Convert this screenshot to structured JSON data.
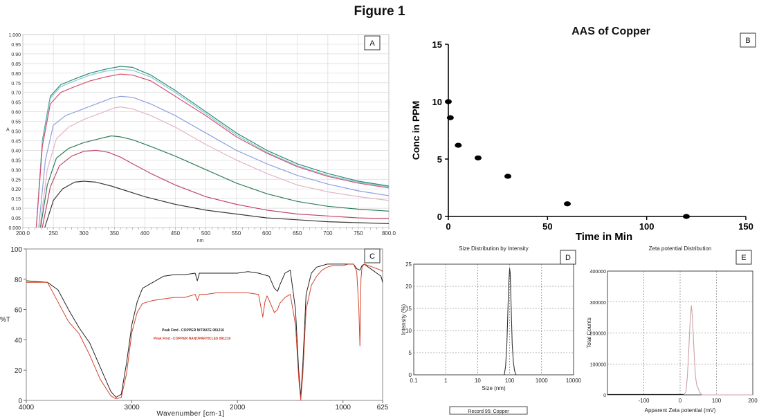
{
  "figure_title": "Figure 1",
  "chart_data": [
    {
      "id": "A",
      "panel_label": "A",
      "type": "line",
      "title": "",
      "xlabel": "nm",
      "ylabel": "A",
      "xlim": [
        200,
        800
      ],
      "ylim": [
        0,
        1.0
      ],
      "x_ticks": [
        "200.0",
        "250",
        "300",
        "350",
        "400",
        "450",
        "500",
        "550",
        "600",
        "650",
        "700",
        "750",
        "800.0"
      ],
      "y_ticks": [
        "0.000",
        "0.05",
        "0.10",
        "0.15",
        "0.20",
        "0.25",
        "0.30",
        "0.35",
        "0.40",
        "0.45",
        "0.50",
        "0.55",
        "0.60",
        "0.65",
        "0.70",
        "0.75",
        "0.80",
        "0.85",
        "0.90",
        "0.95",
        "1.000"
      ],
      "grid": true,
      "series": [
        {
          "color": "#2e8b6e",
          "x": [
            222,
            232,
            245,
            262,
            285,
            310,
            335,
            360,
            380,
            410,
            450,
            500,
            550,
            600,
            650,
            700,
            750,
            800
          ],
          "y": [
            0,
            0.45,
            0.68,
            0.74,
            0.77,
            0.8,
            0.82,
            0.835,
            0.83,
            0.79,
            0.71,
            0.6,
            0.49,
            0.4,
            0.33,
            0.28,
            0.24,
            0.215
          ]
        },
        {
          "color": "#7fc9d9",
          "x": [
            222,
            232,
            245,
            262,
            285,
            310,
            335,
            360,
            380,
            410,
            450,
            500,
            550,
            600,
            650,
            700,
            750,
            800
          ],
          "y": [
            0,
            0.44,
            0.67,
            0.73,
            0.76,
            0.79,
            0.81,
            0.82,
            0.815,
            0.78,
            0.7,
            0.59,
            0.48,
            0.39,
            0.32,
            0.27,
            0.235,
            0.21
          ]
        },
        {
          "color": "#d94f6f",
          "x": [
            222,
            232,
            245,
            262,
            285,
            310,
            335,
            360,
            380,
            410,
            450,
            500,
            550,
            600,
            650,
            700,
            750,
            800
          ],
          "y": [
            0,
            0.42,
            0.64,
            0.7,
            0.73,
            0.76,
            0.78,
            0.795,
            0.79,
            0.76,
            0.68,
            0.58,
            0.47,
            0.385,
            0.315,
            0.265,
            0.23,
            0.205
          ]
        },
        {
          "color": "#8f9fe0",
          "x": [
            226,
            237,
            250,
            270,
            295,
            320,
            345,
            360,
            380,
            410,
            450,
            500,
            550,
            600,
            650,
            700,
            750,
            800
          ],
          "y": [
            0,
            0.35,
            0.53,
            0.58,
            0.61,
            0.64,
            0.67,
            0.68,
            0.675,
            0.64,
            0.58,
            0.49,
            0.4,
            0.33,
            0.27,
            0.225,
            0.19,
            0.165
          ]
        },
        {
          "color": "#e3b3c8",
          "x": [
            228,
            240,
            255,
            275,
            300,
            325,
            350,
            360,
            380,
            410,
            450,
            500,
            550,
            600,
            650,
            700,
            750,
            800
          ],
          "y": [
            0,
            0.3,
            0.46,
            0.52,
            0.56,
            0.59,
            0.62,
            0.625,
            0.615,
            0.58,
            0.52,
            0.43,
            0.35,
            0.28,
            0.22,
            0.185,
            0.16,
            0.14
          ]
        },
        {
          "color": "#2e7d55",
          "x": [
            229,
            240,
            255,
            275,
            300,
            325,
            345,
            360,
            380,
            410,
            450,
            500,
            550,
            600,
            650,
            700,
            750,
            800
          ],
          "y": [
            0,
            0.22,
            0.36,
            0.41,
            0.44,
            0.46,
            0.475,
            0.47,
            0.455,
            0.42,
            0.37,
            0.3,
            0.23,
            0.175,
            0.135,
            0.11,
            0.095,
            0.085
          ]
        },
        {
          "color": "#c2476a",
          "x": [
            232,
            245,
            260,
            280,
            300,
            320,
            340,
            360,
            380,
            410,
            450,
            500,
            550,
            600,
            650,
            700,
            750,
            800
          ],
          "y": [
            0,
            0.21,
            0.32,
            0.37,
            0.395,
            0.4,
            0.39,
            0.365,
            0.33,
            0.28,
            0.22,
            0.16,
            0.12,
            0.09,
            0.07,
            0.06,
            0.05,
            0.045
          ]
        },
        {
          "color": "#3a3a3a",
          "x": [
            236,
            250,
            265,
            285,
            300,
            320,
            345,
            370,
            400,
            450,
            500,
            550,
            600,
            650,
            700,
            750,
            800
          ],
          "y": [
            0,
            0.14,
            0.2,
            0.235,
            0.24,
            0.235,
            0.215,
            0.19,
            0.16,
            0.12,
            0.09,
            0.07,
            0.05,
            0.04,
            0.03,
            0.025,
            0.02
          ]
        }
      ]
    },
    {
      "id": "B",
      "panel_label": "B",
      "type": "scatter",
      "title": "AAS of Copper",
      "xlabel": "Time in Min",
      "ylabel": "Conc in  PPM",
      "xlim": [
        0,
        150
      ],
      "ylim": [
        0,
        15
      ],
      "x_ticks": [
        0,
        50,
        100,
        150
      ],
      "y_ticks": [
        0,
        5,
        10,
        15
      ],
      "grid": false,
      "series": [
        {
          "color": "#000000",
          "x": [
            0,
            1,
            5,
            15,
            30,
            60,
            120
          ],
          "y": [
            10,
            8.6,
            6.2,
            5.1,
            3.5,
            1.1,
            0
          ]
        }
      ]
    },
    {
      "id": "C",
      "panel_label": "C",
      "type": "line",
      "title": "",
      "xlabel": "Wavenumber [cm-1]",
      "ylabel": "%T",
      "xlim": [
        4000,
        625
      ],
      "ylim": [
        0,
        100
      ],
      "x_ticks": [
        "4000",
        "3000",
        "2000",
        "1000",
        "625"
      ],
      "y_ticks": [
        "0",
        "20",
        "40",
        "60",
        "80",
        "100"
      ],
      "grid": false,
      "legend_lines": [
        {
          "label": "Peak Find - COPPER NITRATE 081216",
          "color": "#222222"
        },
        {
          "label": "Peak Find - COPPER NANOPARTICLES 081216",
          "color": "#d0442c"
        }
      ],
      "series": [
        {
          "color": "#222222",
          "x": [
            4000,
            3800,
            3700,
            3600,
            3500,
            3400,
            3300,
            3200,
            3150,
            3100,
            3050,
            3000,
            2950,
            2900,
            2800,
            2700,
            2600,
            2500,
            2400,
            2380,
            2360,
            2300,
            2200,
            2000,
            1900,
            1800,
            1700,
            1650,
            1620,
            1600,
            1550,
            1500,
            1450,
            1420,
            1400,
            1380,
            1350,
            1300,
            1250,
            1200,
            1150,
            1100,
            1000,
            900,
            870,
            840,
            820,
            800,
            760,
            720,
            680,
            640,
            625
          ],
          "y": [
            79,
            78,
            73,
            60,
            48,
            38,
            22,
            6,
            2,
            4,
            25,
            50,
            65,
            74,
            78,
            82,
            83,
            83,
            84,
            79,
            84,
            84,
            84,
            84,
            85,
            84,
            82,
            74,
            72,
            76,
            84,
            86,
            60,
            20,
            2,
            25,
            70,
            84,
            88,
            89,
            90,
            90,
            90,
            90,
            87,
            86,
            89,
            90,
            88,
            86,
            84,
            82,
            78
          ]
        },
        {
          "color": "#d0442c",
          "x": [
            4000,
            3800,
            3700,
            3600,
            3500,
            3400,
            3300,
            3200,
            3150,
            3100,
            3050,
            3000,
            2950,
            2900,
            2800,
            2700,
            2600,
            2500,
            2400,
            2380,
            2360,
            2300,
            2200,
            2000,
            1900,
            1800,
            1760,
            1740,
            1720,
            1700,
            1650,
            1620,
            1600,
            1550,
            1500,
            1450,
            1420,
            1400,
            1380,
            1350,
            1300,
            1250,
            1200,
            1150,
            1100,
            1000,
            950,
            900,
            870,
            850,
            840,
            830,
            820,
            800,
            760,
            720,
            680,
            640,
            625
          ],
          "y": [
            78,
            78,
            65,
            52,
            44,
            30,
            14,
            3,
            1,
            2,
            18,
            45,
            58,
            64,
            66,
            67,
            68,
            68,
            70,
            66,
            70,
            70,
            71,
            71,
            71,
            70,
            55,
            65,
            69,
            66,
            58,
            60,
            64,
            68,
            70,
            50,
            15,
            0,
            18,
            60,
            76,
            82,
            86,
            88,
            89,
            89,
            90,
            90,
            85,
            60,
            36,
            80,
            88,
            90,
            89,
            88,
            87,
            86,
            85
          ]
        }
      ]
    },
    {
      "id": "D",
      "panel_label": "D",
      "type": "line",
      "title": "Size Distribution by Intensity",
      "xlabel": "Size (nm)",
      "ylabel": "Intensity (%)",
      "xscale": "log",
      "xlim": [
        0.1,
        10000
      ],
      "ylim": [
        0,
        25
      ],
      "x_ticks": [
        "0.1",
        "1",
        "10",
        "100",
        "1000",
        "10000"
      ],
      "y_ticks": [
        "0",
        "5",
        "10",
        "15",
        "20",
        "25"
      ],
      "grid": true,
      "footer": "Record 95: Copper",
      "series": [
        {
          "color": "#333333",
          "x": [
            68,
            75,
            82,
            88,
            92,
            96,
            100,
            104,
            108,
            114,
            120,
            130,
            142,
            152,
            160
          ],
          "y": [
            0,
            2,
            7,
            14,
            19,
            22,
            24,
            23,
            19,
            13,
            7,
            3,
            1,
            0.3,
            0
          ]
        }
      ]
    },
    {
      "id": "E",
      "panel_label": "E",
      "type": "line",
      "title": "Zeta potential Distribution",
      "xlabel": "Apparent Zeta potential (mV)",
      "ylabel": "Total Counts",
      "xlim": [
        -200,
        200
      ],
      "ylim": [
        0,
        400000
      ],
      "x_ticks": [
        "-100",
        "0",
        "100",
        "200"
      ],
      "y_ticks": [
        "0",
        "100000",
        "200000",
        "300000",
        "400000"
      ],
      "grid": true,
      "series": [
        {
          "color": "#c9a0a4",
          "x": [
            -200,
            10,
            16,
            20,
            24,
            28,
            31,
            34,
            38,
            42,
            46,
            50,
            54,
            60,
            200
          ],
          "y": [
            0,
            0,
            10000,
            60000,
            150000,
            250000,
            288000,
            250000,
            150000,
            60000,
            30000,
            20000,
            8000,
            0,
            0
          ]
        }
      ]
    }
  ]
}
